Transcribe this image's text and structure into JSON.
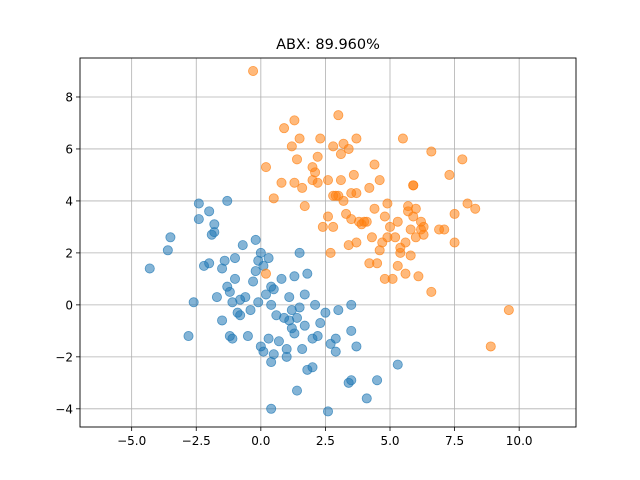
{
  "chart_data": {
    "type": "scatter",
    "title": "ABX: 89.960%",
    "xlabel": "",
    "ylabel": "",
    "xlim": [
      -7.0,
      12.2
    ],
    "ylim": [
      -4.7,
      9.5
    ],
    "xticks": [
      -5.0,
      -2.5,
      0.0,
      2.5,
      5.0,
      7.5,
      10.0
    ],
    "xtick_labels": [
      "−5.0",
      "−2.5",
      "0.0",
      "2.5",
      "5.0",
      "7.5",
      "10.0"
    ],
    "yticks": [
      -4,
      -2,
      0,
      2,
      4,
      6,
      8
    ],
    "ytick_labels": [
      "−4",
      "−2",
      "0",
      "2",
      "4",
      "6",
      "8"
    ],
    "grid": true,
    "legend": "none",
    "series": [
      {
        "color": "#1f77b4",
        "opacity": 0.55,
        "points": [
          [
            -4.3,
            1.4
          ],
          [
            -3.5,
            2.6
          ],
          [
            -3.6,
            2.1
          ],
          [
            -2.8,
            -1.2
          ],
          [
            -2.6,
            0.1
          ],
          [
            -2.4,
            3.9
          ],
          [
            -2.4,
            3.3
          ],
          [
            -2.2,
            1.5
          ],
          [
            -2.0,
            1.6
          ],
          [
            -2.0,
            3.6
          ],
          [
            -1.9,
            2.7
          ],
          [
            -1.8,
            3.1
          ],
          [
            -1.8,
            2.8
          ],
          [
            -1.7,
            0.3
          ],
          [
            -1.5,
            1.4
          ],
          [
            -1.5,
            -0.6
          ],
          [
            -1.4,
            1.7
          ],
          [
            -1.3,
            4.0
          ],
          [
            -1.3,
            0.7
          ],
          [
            -1.2,
            -1.2
          ],
          [
            -1.2,
            0.5
          ],
          [
            -1.1,
            -1.3
          ],
          [
            -1.1,
            0.1
          ],
          [
            -1.0,
            1.0
          ],
          [
            -1.0,
            1.8
          ],
          [
            -0.9,
            -0.3
          ],
          [
            -0.8,
            0.2
          ],
          [
            -0.8,
            -0.4
          ],
          [
            -0.7,
            2.3
          ],
          [
            -0.6,
            0.3
          ],
          [
            -0.5,
            -1.2
          ],
          [
            -0.4,
            -0.2
          ],
          [
            -0.3,
            0.9
          ],
          [
            -0.2,
            2.5
          ],
          [
            -0.2,
            1.3
          ],
          [
            -0.1,
            0.1
          ],
          [
            -0.1,
            1.7
          ],
          [
            0.0,
            -1.6
          ],
          [
            0.0,
            2.0
          ],
          [
            0.1,
            1.5
          ],
          [
            0.1,
            -1.8
          ],
          [
            0.2,
            0.4
          ],
          [
            0.3,
            -1.3
          ],
          [
            0.3,
            1.8
          ],
          [
            0.4,
            0.0
          ],
          [
            0.4,
            0.7
          ],
          [
            0.4,
            -2.2
          ],
          [
            0.5,
            0.6
          ],
          [
            0.5,
            -1.9
          ],
          [
            0.6,
            -0.4
          ],
          [
            0.7,
            -1.4
          ],
          [
            0.8,
            1.0
          ],
          [
            0.9,
            -0.5
          ],
          [
            1.0,
            -1.7
          ],
          [
            1.0,
            -2.0
          ],
          [
            1.1,
            -0.6
          ],
          [
            1.1,
            0.3
          ],
          [
            1.2,
            -0.9
          ],
          [
            1.2,
            -0.2
          ],
          [
            1.3,
            -1.1
          ],
          [
            1.3,
            1.1
          ],
          [
            1.4,
            -0.5
          ],
          [
            1.5,
            2.0
          ],
          [
            1.5,
            -0.1
          ],
          [
            1.6,
            -1.7
          ],
          [
            1.7,
            -0.8
          ],
          [
            1.7,
            0.4
          ],
          [
            1.8,
            -2.5
          ],
          [
            1.8,
            1.2
          ],
          [
            2.0,
            -2.4
          ],
          [
            2.1,
            0.0
          ],
          [
            2.2,
            -1.2
          ],
          [
            2.3,
            -0.7
          ],
          [
            2.5,
            -0.3
          ],
          [
            2.7,
            -1.5
          ],
          [
            2.9,
            -1.8
          ],
          [
            2.9,
            -1.3
          ],
          [
            3.0,
            -0.2
          ],
          [
            3.4,
            -3.0
          ],
          [
            3.5,
            -2.9
          ],
          [
            3.5,
            -1.0
          ],
          [
            3.5,
            0.0
          ],
          [
            3.7,
            -1.6
          ],
          [
            4.1,
            -3.6
          ],
          [
            4.5,
            -2.9
          ],
          [
            5.3,
            -2.3
          ],
          [
            2.6,
            -4.1
          ],
          [
            1.4,
            -3.3
          ],
          [
            0.4,
            -4.0
          ],
          [
            2.0,
            -1.3
          ]
        ]
      },
      {
        "color": "#ff7f0e",
        "opacity": 0.55,
        "points": [
          [
            -0.3,
            9.0
          ],
          [
            0.2,
            1.2
          ],
          [
            0.2,
            5.3
          ],
          [
            0.5,
            4.1
          ],
          [
            0.8,
            4.7
          ],
          [
            0.9,
            6.8
          ],
          [
            1.2,
            6.1
          ],
          [
            1.3,
            7.1
          ],
          [
            1.3,
            4.7
          ],
          [
            1.4,
            5.6
          ],
          [
            1.5,
            6.4
          ],
          [
            1.6,
            4.5
          ],
          [
            1.7,
            3.8
          ],
          [
            2.0,
            5.3
          ],
          [
            2.0,
            4.8
          ],
          [
            2.1,
            5.1
          ],
          [
            2.2,
            5.7
          ],
          [
            2.2,
            4.7
          ],
          [
            2.3,
            6.4
          ],
          [
            2.4,
            3.0
          ],
          [
            2.6,
            4.8
          ],
          [
            2.6,
            3.4
          ],
          [
            2.7,
            2.0
          ],
          [
            2.8,
            3.0
          ],
          [
            2.8,
            6.1
          ],
          [
            2.9,
            4.2
          ],
          [
            3.0,
            7.3
          ],
          [
            3.0,
            4.2
          ],
          [
            3.1,
            5.8
          ],
          [
            3.1,
            4.8
          ],
          [
            3.2,
            6.2
          ],
          [
            3.3,
            3.5
          ],
          [
            3.4,
            2.3
          ],
          [
            3.4,
            6.0
          ],
          [
            3.5,
            4.3
          ],
          [
            3.5,
            3.3
          ],
          [
            3.6,
            5.0
          ],
          [
            3.7,
            4.3
          ],
          [
            3.7,
            6.4
          ],
          [
            3.7,
            2.4
          ],
          [
            3.8,
            3.2
          ],
          [
            3.9,
            3.1
          ],
          [
            4.0,
            3.2
          ],
          [
            4.1,
            3.2
          ],
          [
            4.2,
            4.5
          ],
          [
            4.2,
            1.6
          ],
          [
            4.3,
            2.6
          ],
          [
            4.4,
            5.4
          ],
          [
            4.4,
            3.7
          ],
          [
            4.5,
            1.6
          ],
          [
            4.6,
            4.8
          ],
          [
            4.7,
            2.4
          ],
          [
            4.8,
            3.4
          ],
          [
            4.8,
            1.0
          ],
          [
            4.9,
            2.6
          ],
          [
            4.9,
            3.9
          ],
          [
            5.0,
            3.0
          ],
          [
            5.1,
            1.0
          ],
          [
            5.2,
            2.6
          ],
          [
            5.3,
            3.2
          ],
          [
            5.3,
            1.5
          ],
          [
            5.4,
            2.0
          ],
          [
            5.5,
            6.4
          ],
          [
            5.6,
            1.2
          ],
          [
            5.6,
            2.4
          ],
          [
            5.7,
            3.6
          ],
          [
            5.7,
            3.8
          ],
          [
            5.8,
            2.9
          ],
          [
            5.8,
            1.9
          ],
          [
            5.9,
            4.6
          ],
          [
            5.9,
            4.6
          ],
          [
            5.9,
            3.4
          ],
          [
            6.0,
            2.6
          ],
          [
            6.0,
            3.7
          ],
          [
            6.1,
            1.1
          ],
          [
            6.2,
            2.9
          ],
          [
            6.2,
            3.2
          ],
          [
            6.3,
            2.7
          ],
          [
            6.3,
            3.0
          ],
          [
            6.6,
            5.9
          ],
          [
            6.6,
            0.5
          ],
          [
            7.1,
            2.9
          ],
          [
            7.3,
            5.0
          ],
          [
            7.5,
            3.5
          ],
          [
            7.5,
            2.4
          ],
          [
            7.8,
            5.6
          ],
          [
            8.0,
            3.9
          ],
          [
            8.3,
            3.7
          ],
          [
            8.9,
            -1.6
          ],
          [
            9.6,
            -0.2
          ],
          [
            6.9,
            2.9
          ],
          [
            4.6,
            2.1
          ],
          [
            5.4,
            2.2
          ],
          [
            2.8,
            4.2
          ],
          [
            3.2,
            4.0
          ]
        ]
      }
    ]
  }
}
